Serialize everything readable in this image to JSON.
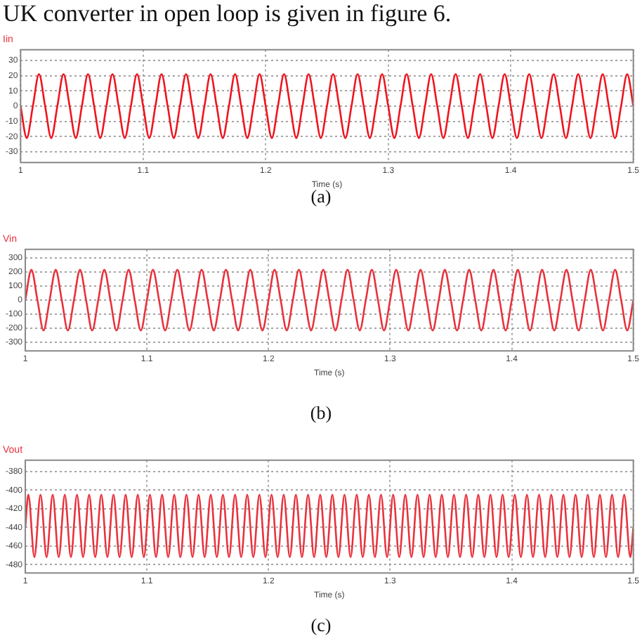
{
  "chart_data": [
    {
      "type": "line",
      "title": "Iin",
      "xlabel": "Time (s)",
      "annotations": [
        "UK converter in open loop is given in figure 6.",
        "(a)"
      ],
      "x": [
        1,
        1.005,
        1.01,
        1.015,
        1.02,
        1.025,
        1.03,
        1.035,
        1.04,
        1.045,
        1.05,
        1.055,
        1.06,
        1.065,
        1.07,
        1.075,
        1.08,
        1.085,
        1.09,
        1.095,
        1.1,
        1.105,
        1.11,
        1.115,
        1.12,
        1.125,
        1.13,
        1.135,
        1.14,
        1.145,
        1.15,
        1.155,
        1.16,
        1.165,
        1.17,
        1.175,
        1.18,
        1.185,
        1.19,
        1.195,
        1.2,
        1.205,
        1.21,
        1.215,
        1.22,
        1.225,
        1.23,
        1.235,
        1.24,
        1.245,
        1.25,
        1.255,
        1.26,
        1.265,
        1.27,
        1.275,
        1.28,
        1.285,
        1.29,
        1.295,
        1.3,
        1.305,
        1.31,
        1.315,
        1.32,
        1.325,
        1.33,
        1.335,
        1.34,
        1.345,
        1.35,
        1.355,
        1.36,
        1.365,
        1.37,
        1.375,
        1.38,
        1.385,
        1.39,
        1.395,
        1.4,
        1.405,
        1.41,
        1.415,
        1.42,
        1.425,
        1.43,
        1.435,
        1.44,
        1.445,
        1.45,
        1.455,
        1.46,
        1.465,
        1.47,
        1.475,
        1.48,
        1.485,
        1.49,
        1.495,
        1.5
      ],
      "series": [
        {
          "color": "#f0141e",
          "values": [
            0,
            -21,
            0,
            21,
            0,
            -21,
            0,
            21,
            0,
            -21,
            0,
            21,
            0,
            -21,
            0,
            21,
            0,
            -21,
            0,
            21,
            0,
            -21,
            0,
            21,
            0,
            -21,
            0,
            21,
            0,
            -21,
            0,
            21,
            0,
            -21,
            0,
            21,
            0,
            -21,
            0,
            21,
            0,
            -21,
            0,
            21,
            0,
            -21,
            0,
            21,
            0,
            -21,
            0,
            21,
            0,
            -21,
            0,
            21,
            0,
            -21,
            0,
            21,
            0,
            -21,
            0,
            21,
            0,
            -21,
            0,
            21,
            0,
            -21,
            0,
            21,
            0,
            -21,
            0,
            21,
            0,
            -21,
            0,
            21,
            0,
            -21,
            0,
            21,
            0,
            -21,
            0,
            21,
            0,
            -21,
            0,
            21,
            0,
            -21,
            0,
            21,
            0,
            -21,
            0,
            21,
            0
          ]
        }
      ],
      "xlim": [
        1,
        1.5
      ],
      "xticks": [
        1,
        1.1,
        1.2,
        1.3,
        1.4,
        1.5
      ],
      "ylim": [
        -37,
        37
      ],
      "yticks": [
        -30,
        -20,
        -10,
        0,
        10,
        20,
        30
      ],
      "grid": true
    },
    {
      "type": "line",
      "title": "Vin",
      "xlabel": "Time (s)",
      "annotations": [
        "(b)"
      ],
      "x": [
        1,
        1.005,
        1.01,
        1.015,
        1.02,
        1.025,
        1.03,
        1.035,
        1.04,
        1.045,
        1.05,
        1.055,
        1.06,
        1.065,
        1.07,
        1.075,
        1.08,
        1.085,
        1.09,
        1.095,
        1.1,
        1.105,
        1.11,
        1.115,
        1.12,
        1.125,
        1.13,
        1.135,
        1.14,
        1.145,
        1.15,
        1.155,
        1.16,
        1.165,
        1.17,
        1.175,
        1.18,
        1.185,
        1.19,
        1.195,
        1.2,
        1.205,
        1.21,
        1.215,
        1.22,
        1.225,
        1.23,
        1.235,
        1.24,
        1.245,
        1.25,
        1.255,
        1.26,
        1.265,
        1.27,
        1.275,
        1.28,
        1.285,
        1.29,
        1.295,
        1.3,
        1.305,
        1.31,
        1.315,
        1.32,
        1.325,
        1.33,
        1.335,
        1.34,
        1.345,
        1.35,
        1.355,
        1.36,
        1.365,
        1.37,
        1.375,
        1.38,
        1.385,
        1.39,
        1.395,
        1.4,
        1.405,
        1.41,
        1.415,
        1.42,
        1.425,
        1.43,
        1.435,
        1.44,
        1.445,
        1.45,
        1.455,
        1.46,
        1.465,
        1.47,
        1.475,
        1.48,
        1.485,
        1.49,
        1.495,
        1.5
      ],
      "series": [
        {
          "color": "#e8323c",
          "values": [
            0,
            215,
            0,
            -215,
            0,
            215,
            0,
            -215,
            0,
            215,
            0,
            -215,
            0,
            215,
            0,
            -215,
            0,
            215,
            0,
            -215,
            0,
            215,
            0,
            -215,
            0,
            215,
            0,
            -215,
            0,
            215,
            0,
            -215,
            0,
            215,
            0,
            -215,
            0,
            215,
            0,
            -215,
            0,
            215,
            0,
            -215,
            0,
            215,
            0,
            -215,
            0,
            215,
            0,
            -215,
            0,
            215,
            0,
            -215,
            0,
            215,
            0,
            -215,
            0,
            215,
            0,
            -215,
            0,
            215,
            0,
            -215,
            0,
            215,
            0,
            -215,
            0,
            215,
            0,
            -215,
            0,
            215,
            0,
            -215,
            0,
            215,
            0,
            -215,
            0,
            215,
            0,
            -215,
            0,
            215,
            0,
            -215,
            0,
            215,
            0,
            -215,
            0,
            215,
            0,
            -215,
            0
          ]
        }
      ],
      "xlim": [
        1,
        1.5
      ],
      "xticks": [
        1,
        1.1,
        1.2,
        1.3,
        1.4,
        1.5
      ],
      "ylim": [
        -360,
        360
      ],
      "yticks": [
        -300,
        -200,
        -100,
        0,
        100,
        200,
        300
      ],
      "grid": true
    },
    {
      "type": "line",
      "title": "Vout",
      "xlabel": "Time (s)",
      "annotations": [
        "(c)"
      ],
      "x": [
        1,
        1.0025,
        1.0075,
        1.0125,
        1.0175,
        1.0225,
        1.0275,
        1.0325,
        1.0375,
        1.0425,
        1.0475,
        1.0525,
        1.0575,
        1.0625,
        1.0675,
        1.0725,
        1.0775,
        1.0825,
        1.0875,
        1.0925,
        1.0975,
        1.1025,
        1.1075,
        1.1125,
        1.1175,
        1.1225,
        1.1275,
        1.1325,
        1.1375,
        1.1425,
        1.1475,
        1.1525,
        1.1575,
        1.1625,
        1.1675,
        1.1725,
        1.1775,
        1.1825,
        1.1875,
        1.1925,
        1.1975,
        1.2025,
        1.2075,
        1.2125,
        1.2175,
        1.2225,
        1.2275,
        1.2325,
        1.2375,
        1.2425,
        1.2475,
        1.2525,
        1.2575,
        1.2625,
        1.2675,
        1.2725,
        1.2775,
        1.2825,
        1.2875,
        1.2925,
        1.2975,
        1.3025,
        1.3075,
        1.3125,
        1.3175,
        1.3225,
        1.3275,
        1.3325,
        1.3375,
        1.3425,
        1.3475,
        1.3525,
        1.3575,
        1.3625,
        1.3675,
        1.3725,
        1.3775,
        1.3825,
        1.3875,
        1.3925,
        1.3975,
        1.4025,
        1.4075,
        1.4125,
        1.4175,
        1.4225,
        1.4275,
        1.4325,
        1.4375,
        1.4425,
        1.4475,
        1.4525,
        1.4575,
        1.4625,
        1.4675,
        1.4725,
        1.4775,
        1.4825,
        1.4875,
        1.4925,
        1.4975,
        1.5
      ],
      "series": [
        {
          "color": "#e8323c",
          "values": [
            -440,
            -405,
            -472,
            -405,
            -472,
            -405,
            -472,
            -405,
            -472,
            -405,
            -472,
            -405,
            -472,
            -405,
            -472,
            -405,
            -472,
            -405,
            -472,
            -405,
            -472,
            -405,
            -472,
            -405,
            -472,
            -405,
            -472,
            -405,
            -472,
            -405,
            -472,
            -405,
            -472,
            -405,
            -472,
            -405,
            -472,
            -405,
            -472,
            -405,
            -472,
            -405,
            -472,
            -405,
            -472,
            -405,
            -472,
            -405,
            -472,
            -405,
            -472,
            -405,
            -472,
            -405,
            -472,
            -405,
            -472,
            -405,
            -472,
            -405,
            -472,
            -405,
            -472,
            -405,
            -472,
            -405,
            -472,
            -405,
            -472,
            -405,
            -472,
            -405,
            -472,
            -405,
            -472,
            -405,
            -472,
            -405,
            -472,
            -405,
            -472,
            -405,
            -472,
            -405,
            -472,
            -405,
            -472,
            -405,
            -472,
            -405,
            -472,
            -405,
            -472,
            -405,
            -472,
            -405,
            -472,
            -405,
            -472,
            -405,
            -472,
            -440
          ]
        }
      ],
      "xlim": [
        1,
        1.5
      ],
      "xticks": [
        1,
        1.1,
        1.2,
        1.3,
        1.4,
        1.5
      ],
      "ylim": [
        -489,
        -368
      ],
      "yticks": [
        -480,
        -460,
        -440,
        -420,
        -400,
        -380
      ],
      "grid": true
    }
  ]
}
